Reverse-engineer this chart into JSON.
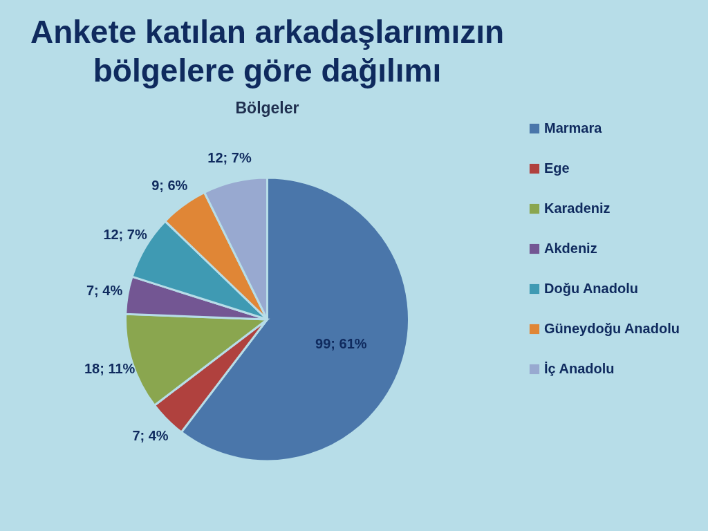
{
  "chart_data": {
    "type": "pie",
    "title": "Ankete katılan arkadaşlarımızın bölgelere göre dağılımı",
    "subtitle": "Bölgeler",
    "categories": [
      "Marmara",
      "Ege",
      "Karadeniz",
      "Akdeniz",
      "Doğu Anadolu",
      "Güneydoğu Anadolu",
      "İç Anadolu"
    ],
    "values": [
      99,
      7,
      18,
      7,
      12,
      9,
      12
    ],
    "colors": [
      "#4a76aa",
      "#b0413e",
      "#8aa64f",
      "#735693",
      "#3f9ab3",
      "#e08636",
      "#98a9d0"
    ],
    "value_labels": [
      "99; 61%",
      "7; 4%",
      "18; 11%",
      "7; 4%",
      "12; 7%",
      "9; 6%",
      "12; 7%"
    ],
    "legend": "right"
  }
}
